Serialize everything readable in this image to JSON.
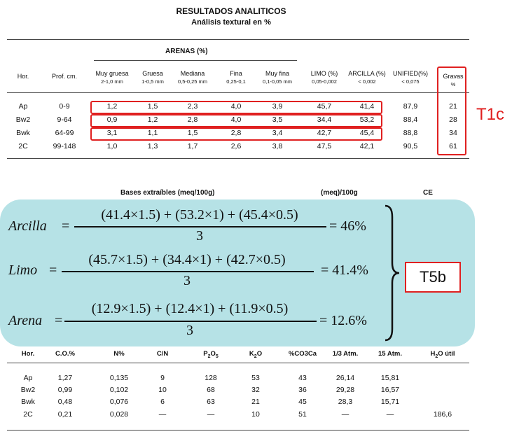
{
  "doc": {
    "title": "RESULTADOS ANALITICOS",
    "subtitle": "Análisis textural en %",
    "arenas_label": "ARENAS (%)"
  },
  "table1": {
    "headers": [
      {
        "label": "Hor.",
        "sub": ""
      },
      {
        "label": "Prof. cm.",
        "sub": ""
      },
      {
        "label": "Muy gruesa",
        "sub": "2-1,0 mm"
      },
      {
        "label": "Gruesa",
        "sub": "1-0,5 mm"
      },
      {
        "label": "Mediana",
        "sub": "0,5-0,25 mm"
      },
      {
        "label": "Fina",
        "sub": "0,25-0,1"
      },
      {
        "label": "Muy fina",
        "sub": "0,1-0,05 mm"
      },
      {
        "label": "LIMO (%)",
        "sub": "0,05-0,002"
      },
      {
        "label": "ARCILLA (%)",
        "sub": "< 0,002"
      },
      {
        "label": "UNIFIED(%)",
        "sub": "< 0,075"
      },
      {
        "label": "Gravas",
        "sub": "%"
      }
    ],
    "rows": [
      [
        "Ap",
        "0-9",
        "1,2",
        "1,5",
        "2,3",
        "4,0",
        "3,9",
        "45,7",
        "41,4",
        "87,9",
        "21"
      ],
      [
        "Bw2",
        "9-64",
        "0,9",
        "1,2",
        "2,8",
        "4,0",
        "3,5",
        "34,4",
        "53,2",
        "88,4",
        "28"
      ],
      [
        "Bwk",
        "64-99",
        "3,1",
        "1,1",
        "1,5",
        "2,8",
        "3,4",
        "42,7",
        "45,4",
        "88,8",
        "34"
      ],
      [
        "2C",
        "99-148",
        "1,0",
        "1,3",
        "1,7",
        "2,6",
        "3,8",
        "47,5",
        "42,1",
        "90,5",
        "61"
      ]
    ]
  },
  "annotations": {
    "t1c": "T1c",
    "t5b": "T5b"
  },
  "section2": {
    "bases_title": "Bases extraíbles (meq/100g)",
    "meq_title": "(meq)/100g",
    "ce_title": "CE"
  },
  "formulas": [
    {
      "name": "Arcilla",
      "numerator": "(41.4×1.5) + (53.2×1) + (45.4×0.5)",
      "denominator": "3",
      "result": "= 46%"
    },
    {
      "name": "Limo",
      "numerator": "(45.7×1.5) + (34.4×1) + (42.7×0.5)",
      "denominator": "3",
      "result": "= 41.4%"
    },
    {
      "name": "Arena",
      "numerator": "(12.9×1.5) + (12.4×1) + (11.9×0.5)",
      "denominator": "3",
      "result": "= 12.6%"
    }
  ],
  "table2": {
    "headers": [
      "Hor.",
      "C.O.%",
      "N%",
      "C/N",
      "P",
      "K",
      "%CO3Ca",
      "1/3 Atm.",
      "15 Atm.",
      "H"
    ],
    "header_subs": {
      "p": "2",
      "p_tail": "O",
      "p_tail_sub": "5",
      "k_tail": "O",
      "h_sub": "2",
      "h_tail": "O útil"
    },
    "rows": [
      [
        "Ap",
        "1,27",
        "0,135",
        "9",
        "128",
        "53",
        "43",
        "26,14",
        "15,81",
        ""
      ],
      [
        "Bw2",
        "0,99",
        "0,102",
        "10",
        "68",
        "32",
        "36",
        "29,28",
        "16,57",
        ""
      ],
      [
        "Bwk",
        "0,48",
        "0,076",
        "6",
        "63",
        "21",
        "45",
        "28,3",
        "15,71",
        ""
      ],
      [
        "2C",
        "0,21",
        "0,028",
        "—",
        "—",
        "10",
        "51",
        "—",
        "—",
        "186,6"
      ]
    ]
  }
}
